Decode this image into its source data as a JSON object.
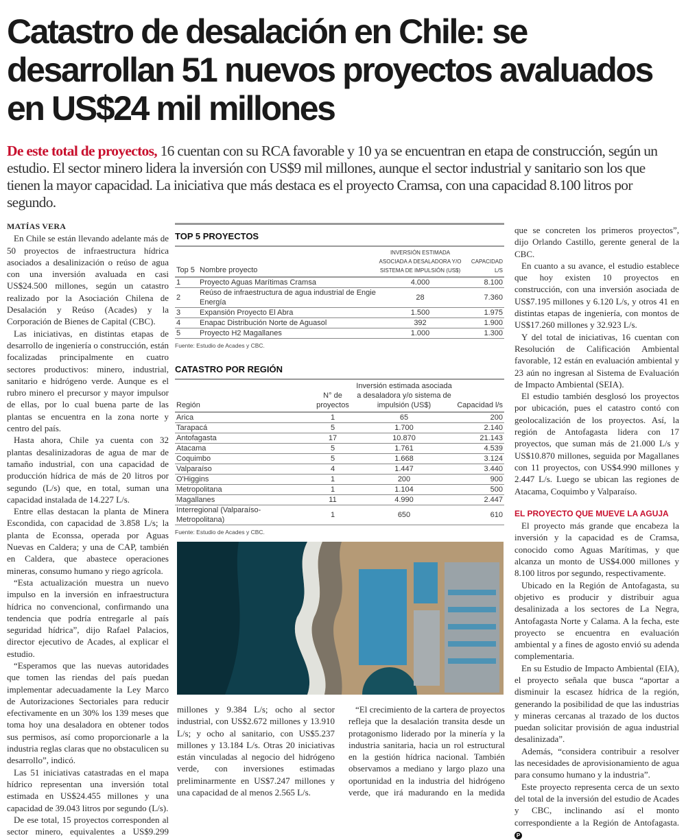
{
  "headline": "Catastro de desalación en Chile: se desarrollan 51 nuevos proyectos avaluados en US$24 mil millones",
  "deck": {
    "lead": "De este total de proyectos,",
    "text": " 16 cuentan con su RCA favorable y 10 ya se encuentran en etapa de construcción, según un estudio. El sector minero lidera la inversión con US$9 mil millones, aunque el sector industrial y sanitario son los que tienen la mayor capacidad. La iniciativa que más destaca es el proyecto Cramsa, con una capacidad 8.100 litros por segundo."
  },
  "byline": "MATÍAS VERA",
  "left_paragraphs": [
    "En Chile se están llevando adelante más de 50 proyectos de infraestructura hídrica asociados a desalinización o reúso de agua con una inversión avaluada en casi US$24.500 millones, según un catastro realizado por la Asociación Chilena de Desalación y Reúso (Acades) y la Corporación de Bienes de Capital (CBC).",
    "Las iniciativas, en distintas etapas de desarrollo de ingeniería o construcción, están focalizadas principalmente en cuatro sectores productivos: minero, industrial, sanitario e hidrógeno verde. Aunque es el rubro minero el precursor y mayor impulsor de ellas, por lo cual buena parte de las plantas se encuentra en la zona norte y centro del país.",
    "Hasta ahora, Chile ya cuenta con 32 plantas desalinizadoras de agua de mar de tamaño industrial, con una capacidad de producción hídrica de más de 20 litros por segundo (L/s) que, en total, suman una capacidad instalada de 14.227 L/s.",
    "Entre ellas destacan la planta de Minera Escondida, con capacidad de 3.858 L/s; la planta de Econssa, operada por Aguas Nuevas en Caldera; y una de CAP, también en Caldera, que abastece operaciones mineras, consumo humano y riego agrícola.",
    "“Esta actualización muestra un nuevo impulso en la inversión en infraestructura hídrica no convencional, confirmando una tendencia que podría entregarle al país seguridad hídrica”, dijo Rafael Palacios, director ejecutivo de Acades, al explicar el estudio.",
    "“Esperamos que las nuevas autoridades que tomen las riendas del país puedan implementar adecuadamente la Ley Marco de Autorizaciones Sectoriales para reducir efectivamente en un 30% los 139 meses que toma hoy una desaladora en obtener todos sus permisos, así como proporcionarle a la industria reglas claras que no obstaculicen su desarrollo”, indicó.",
    "Las 51 iniciativas catastradas en el mapa hídrico representan una inversión total estimada en US$24.455 millones y una capacidad de 39.043 litros por segundo (L/s).",
    "De ese total, 15 proyectos corresponden al sector minero, equivalentes a US$9.299"
  ],
  "middle_paragraphs": [
    "millones y 9.384 L/s; ocho al sector industrial, con US$2.672 millones y 13.910 L/s; y ocho al sanitario, con US$5.237 millones y 13.184 L/s. Otras 20 iniciativas están vinculadas al negocio del hidrógeno verde, con inversiones estimadas preliminarmente en US$7.247 millones y una capacidad de al menos 2.565 L/s.",
    "“El crecimiento de la cartera de proyectos refleja que la desalación transita desde un protagonismo liderado por la minería y la industria sanitaria, hacia un rol estructural en la gestión hídrica nacional. También observamos a mediano y largo plazo una oportunidad en la industria del hidrógeno verde, que irá madurando en la medida"
  ],
  "right_paragraphs": [
    "que se concreten los primeros proyectos”, dijo Orlando Castillo, gerente general de la CBC.",
    "En cuanto a su avance, el estudio establece que hoy existen 10 proyectos en construcción, con una inversión asociada de US$7.195 millones y 6.120 L/s, y otros 41 en distintas etapas de ingeniería, con montos de US$17.260 millones y 32.923 L/s.",
    "Y del total de iniciativas, 16 cuentan con Resolución de Calificación Ambiental favorable, 12 están en evaluación ambiental y 23 aún no ingresan al Sistema de Evaluación de Impacto Ambiental (SEIA).",
    "El estudio también desglosó los proyectos por ubicación, pues el catastro contó con geolocalización de los proyectos. Así, la región de Antofagasta lidera con 17 proyectos, que suman más de 21.000 L/s y US$10.870 millones, seguida por Magallanes con 11 proyectos, con US$4.990 millones y 2.447 L/s. Luego se ubican las regiones de Atacama, Coquimbo y Valparaíso."
  ],
  "subheading": "EL PROYECTO QUE MUEVE LA AGUJA",
  "sub_paragraphs": [
    "El proyecto más grande que encabeza la inversión y la capacidad es de Cramsa, conocido como Aguas Marítimas, y que alcanza un monto de US$4.000 millones y 8.100 litros por segundo, respectivamente.",
    "Ubicado en la Región de Antofagasta, su objetivo es producir y distribuir agua desalinizada a los sectores de La Negra, Antofagasta Norte y Calama. A la fecha, este proyecto se encuentra en evaluación ambiental y a fines de agosto envió su adenda complementaria.",
    "En su Estudio de Impacto Ambiental (EIA), el proyecto señala que busca “aportar a disminuir la escasez hídrica de la región, generando la posibilidad de que las industrias y mineras cercanas al trazado de los ductos puedan solicitar provisión de agua industrial desalinizada”.",
    "Además, “considera contribuir a resolver las necesidades de aprovisionamiento de agua para consumo humano y la industria”.",
    "Este proyecto representa cerca de un sexto del total de la inversión del estudio de Acades y CBC, inclinando así el monto correspondiente a la Región de Antofagasta."
  ],
  "end_mark": "P",
  "top5": {
    "title": "TOP 5 PROYECTOS",
    "headers": [
      "Top 5",
      "Nombre proyecto",
      "Inversión estimada asociada a desaladora y/o sistema de impulsión (US$)",
      "Capacidad l/s"
    ],
    "rows": [
      [
        "1",
        "Proyecto Aguas Marítimas Cramsa",
        "4.000",
        "8.100"
      ],
      [
        "2",
        "Reúso de infraestructura de agua industrial de Engie Energía",
        "28",
        "7.360"
      ],
      [
        "3",
        "Expansión Proyecto El Abra",
        "1.500",
        "1.975"
      ],
      [
        "4",
        "Enapac Distribución Norte de Aguasol",
        "392",
        "1.900"
      ],
      [
        "5",
        "Proyecto H2 Magallanes",
        "1.000",
        "1.300"
      ]
    ],
    "source": "Fuente: Estudio de Acades y CBC."
  },
  "region": {
    "title": "CATASTRO POR REGIÓN",
    "headers": [
      "Región",
      "N° de proyectos",
      "Inversión estimada asociada a desaladora y/o sistema de impulsión (US$)",
      "Capacidad l/s"
    ],
    "rows": [
      [
        "Arica",
        "1",
        "65",
        "200"
      ],
      [
        "Tarapacá",
        "5",
        "1.700",
        "2.140"
      ],
      [
        "Antofagasta",
        "17",
        "10.870",
        "21.143"
      ],
      [
        "Atacama",
        "5",
        "1.761",
        "4.539"
      ],
      [
        "Coquimbo",
        "5",
        "1.668",
        "3.124"
      ],
      [
        "Valparaíso",
        "4",
        "1.447",
        "3.440"
      ],
      [
        "O'Higgins",
        "1",
        "200",
        "900"
      ],
      [
        "Metropolitana",
        "1",
        "1.104",
        "500"
      ],
      [
        "Magallanes",
        "11",
        "4.990",
        "2.447"
      ],
      [
        "Interregional (Valparaíso- Metropolitana)",
        "1",
        "650",
        "610"
      ]
    ],
    "source": "Fuente: Estudio de Acades y CBC."
  },
  "colors": {
    "accent": "#c8102e"
  }
}
